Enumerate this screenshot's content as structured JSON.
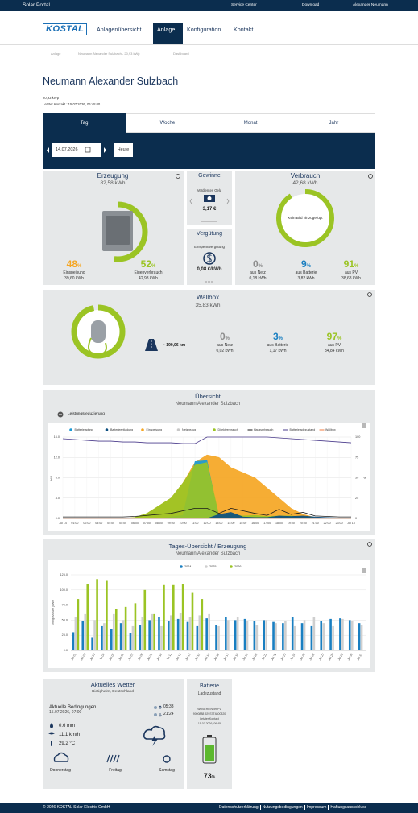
{
  "topbar": {
    "brand": "Solar Portal",
    "links": [
      "Service Center",
      "Download",
      "Alexander Neumann"
    ]
  },
  "nav": {
    "logo": "KOSTAL",
    "items": [
      "Anlagenübersicht",
      "Anlage",
      "Konfiguration",
      "Kontakt"
    ],
    "active": 1
  },
  "breadcrumb": [
    "Anlage",
    "Neumann Alexander Sulzbach - 20,93 kWp",
    "Dashboard"
  ],
  "header": {
    "title": "Neumann Alexander Sulzbach",
    "kwp": "20,93 kWp",
    "last_contact": "Letzter Kontakt : 15.07.2026, 06:45:00"
  },
  "tabs": {
    "items": [
      "Tag",
      "Woche",
      "Monat",
      "Jahr"
    ],
    "active": 0
  },
  "date": {
    "value": "14.07.2026",
    "today": "Heute"
  },
  "erzeugung": {
    "title": "Erzeugung",
    "total": "82,58 kWh",
    "items": [
      {
        "percent": 48,
        "unit": "%",
        "label": "Einspeisung",
        "amount": "39,60 kWh",
        "color": "#f5a623"
      },
      {
        "percent": 52,
        "unit": "%",
        "label": "Eigenverbrauch",
        "amount": "42,98 kWh",
        "color": "#9bc424"
      }
    ]
  },
  "gewinne": {
    "title": "Gewinne",
    "label": "Verdientes Geld",
    "amount": "3,17 €"
  },
  "verguetung": {
    "title": "Vergütung",
    "label": "Einspeisevergütung",
    "amount": "0,08 €/kWh"
  },
  "verbrauch": {
    "title": "Verbrauch",
    "total": "42,68 kWh",
    "image_text": "Kein Bild hinzugefügt",
    "items": [
      {
        "percent": 0,
        "unit": "%",
        "label": "aus Netz",
        "amount": "0,18 kWh",
        "color": "#8c8c8c"
      },
      {
        "percent": 9,
        "unit": "%",
        "label": "aus Batterie",
        "amount": "3,82 kWh",
        "color": "#1a7fc1"
      },
      {
        "percent": 91,
        "unit": "%",
        "label": "aus PV",
        "amount": "38,68 kWh",
        "color": "#9bc424"
      }
    ]
  },
  "wallbox": {
    "title": "Wallbox",
    "total": "35,83 kWh",
    "distance": "~ 199,06 km",
    "items": [
      {
        "percent": 0,
        "unit": "%",
        "label": "aus Netz",
        "amount": "0,02 kWh",
        "color": "#8c8c8c"
      },
      {
        "percent": 3,
        "unit": "%",
        "label": "aus Batterie",
        "amount": "1,17 kWh",
        "color": "#1a7fc1"
      },
      {
        "percent": 97,
        "unit": "%",
        "label": "aus PV",
        "amount": "34,84 kWh",
        "color": "#9bc424"
      }
    ]
  },
  "chart_data": [
    {
      "type": "line",
      "title": "Übersicht",
      "subtitle": "Neumann Alexander Sulzbach",
      "toggle_label": "Leistungsreduzierung",
      "y_label": "kW",
      "y2_label": "%",
      "categories": [
        "Jul 14",
        "01:00",
        "02:00",
        "03:00",
        "04:00",
        "05:00",
        "06:00",
        "07:00",
        "08:00",
        "09:00",
        "10:00",
        "11:00",
        "12:00",
        "13:00",
        "14:00",
        "15:00",
        "16:00",
        "17:00",
        "18:00",
        "19:00",
        "20:00",
        "21:00",
        "22:00",
        "23:00",
        "Jul 15"
      ],
      "ylim": [
        0,
        16
      ],
      "yticks": [
        {
          "value": 0,
          "label": "0.0"
        },
        {
          "value": 4,
          "label": "4.0"
        },
        {
          "value": 8,
          "label": "8.0"
        },
        {
          "value": 12,
          "label": "12.0"
        },
        {
          "value": 16,
          "label": "16.0"
        }
      ],
      "y2lim": [
        0,
        100
      ],
      "y2ticks": [
        0,
        25,
        50,
        75,
        100
      ],
      "grid": true,
      "series": [
        {
          "name": "Batterieladung",
          "color": "#1a9ad6",
          "kind": "area",
          "values": [
            0,
            0,
            0,
            0,
            0,
            0,
            0,
            0,
            0,
            0.3,
            0.6,
            11.2,
            11.4,
            0,
            0,
            0,
            0,
            0,
            0,
            0,
            0,
            0,
            0,
            0,
            0
          ]
        },
        {
          "name": "Batterieentladung",
          "color": "#0d4f80",
          "kind": "area",
          "values": [
            0,
            0,
            0,
            0,
            0,
            0,
            0,
            0,
            0,
            0,
            0,
            0,
            0,
            0.8,
            1.2,
            0.3,
            0.2,
            0.2,
            0.5,
            0.4,
            0.5,
            0.3,
            0.2,
            0.1,
            0
          ]
        },
        {
          "name": "Einspeisung",
          "color": "#f5a623",
          "kind": "area",
          "values": [
            0,
            0,
            0,
            0,
            0,
            0,
            0.2,
            1,
            2.5,
            4,
            7,
            11,
            12.5,
            12,
            10,
            9,
            8,
            6,
            4,
            2,
            0.8,
            0.2,
            0,
            0,
            0
          ]
        },
        {
          "name": "Netzbezug",
          "color": "#c8c8c8",
          "kind": "area",
          "values": [
            0,
            0,
            0,
            0,
            0,
            0,
            0,
            0,
            0,
            0,
            0,
            0,
            0,
            0,
            0,
            0,
            0,
            0,
            0,
            0,
            0,
            0,
            0,
            0,
            0
          ]
        },
        {
          "name": "Direktverbrauch",
          "color": "#9bc424",
          "kind": "area",
          "values": [
            0,
            0,
            0,
            0,
            0,
            0,
            0.2,
            1,
            2.5,
            4,
            7,
            10.5,
            11,
            0.5,
            0.8,
            0.5,
            0.6,
            0.4,
            0.5,
            0.5,
            0.3,
            0.1,
            0,
            0,
            0
          ]
        },
        {
          "name": "Hausverbrauch",
          "color": "#1a1a1a",
          "kind": "line",
          "values": [
            0.3,
            0.3,
            0.3,
            0.3,
            0.3,
            0.3,
            0.4,
            0.6,
            0.8,
            1,
            1.5,
            2,
            2,
            1,
            2,
            1.5,
            1,
            0.6,
            1.8,
            0.8,
            1.2,
            0.5,
            0.4,
            0.3,
            0.3
          ]
        },
        {
          "name": "Batterieladezustand",
          "color": "#4b3c8c",
          "kind": "line",
          "axis": "y2",
          "values": [
            98,
            97,
            96,
            95,
            95,
            94,
            94,
            93,
            93,
            93,
            92,
            92,
            100,
            100,
            100,
            100,
            100,
            100,
            99,
            98,
            97,
            96,
            95,
            94,
            93
          ]
        },
        {
          "name": "Wallbox",
          "color": "#f07b3f",
          "kind": "line",
          "values": [
            0,
            0,
            0,
            0,
            0,
            0,
            0,
            0,
            0,
            0,
            0,
            0,
            0,
            0,
            0,
            0,
            0,
            0,
            0,
            0,
            0,
            0,
            0,
            0,
            0
          ]
        }
      ]
    },
    {
      "type": "bar",
      "title": "Tages-Übersicht / Erzeugung",
      "subtitle": "Neumann Alexander Sulzbach",
      "y_label": "Energiezufuhr [kWh]",
      "categories": [
        "Jul 01",
        "Jul 02",
        "Jul 03",
        "Jul 04",
        "Jul 05",
        "Jul 06",
        "Jul 07",
        "Jul 08",
        "Jul 09",
        "Jul 10",
        "Jul 11",
        "Jul 12",
        "Jul 13",
        "Jul 14",
        "Jul 15",
        "Jul 16",
        "Jul 17",
        "Jul 18",
        "Jul 19",
        "Jul 20",
        "Jul 21",
        "Jul 22",
        "Jul 23",
        "Jul 24",
        "Jul 25",
        "Jul 26",
        "Jul 27",
        "Jul 28",
        "Jul 29",
        "Jul 30",
        "Jul 31"
      ],
      "ylim": [
        0,
        125
      ],
      "yticks": [
        {
          "value": 0,
          "label": "0.0"
        },
        {
          "value": 25,
          "label": "25.0"
        },
        {
          "value": 50,
          "label": "50.0"
        },
        {
          "value": 75,
          "label": "75.0"
        },
        {
          "value": 100,
          "label": "100.0"
        },
        {
          "value": 125,
          "label": "125.0"
        }
      ],
      "grid": true,
      "series": [
        {
          "name": "2024",
          "color": "#1a7fc1",
          "values": [
            30,
            48,
            22,
            40,
            35,
            45,
            28,
            42,
            50,
            55,
            48,
            52,
            47,
            40,
            53,
            42,
            55,
            50,
            52,
            48,
            50,
            47,
            45,
            55,
            45,
            40,
            48,
            52,
            53,
            50,
            45
          ]
        },
        {
          "name": "2025",
          "color": "#cfcfcf",
          "values": [
            55,
            60,
            50,
            45,
            60,
            50,
            40,
            55,
            60,
            40,
            58,
            62,
            55,
            58,
            60,
            40,
            50,
            55,
            48,
            42,
            50,
            45,
            48,
            40,
            50,
            55,
            45,
            40,
            52,
            48,
            42
          ]
        },
        {
          "name": "2026",
          "color": "#9bc424",
          "values": [
            85,
            110,
            118,
            115,
            68,
            72,
            78,
            100,
            60,
            108,
            108,
            110,
            95,
            85,
            null,
            null,
            null,
            null,
            null,
            null,
            null,
            null,
            null,
            null,
            null,
            null,
            null,
            null,
            null,
            null,
            null
          ]
        }
      ]
    }
  ],
  "weather": {
    "title": "Aktuelles Wetter",
    "location": "Bietigheim, Deutschland",
    "conditions": "Aktuelle Bedingungen",
    "time": "15.07.2026, 07:00",
    "sunrise": "05:33",
    "sunset": "21:24",
    "rain": "0.6 mm",
    "wind": "11.1 km/h",
    "temperature": "29.2 °C",
    "days": [
      "Donnerstag",
      "Freitag",
      "Samstag"
    ]
  },
  "battery": {
    "title": "Batterie",
    "subtitle": "Ladezustand",
    "details": [
      "WRSERIENNR.PV",
      "9000888 929S7T4800820",
      "Letzter Kontakt",
      "15.07.2026, 06:45"
    ],
    "percent": 73,
    "unit": "%"
  },
  "footer": {
    "copyright": "© 2026 KOSTAL Solar Electric GmbH",
    "links": [
      "Datenschutzerklärung",
      "Nutzungsbedingungen",
      "Impressum",
      "Haftungsausschluss"
    ]
  }
}
